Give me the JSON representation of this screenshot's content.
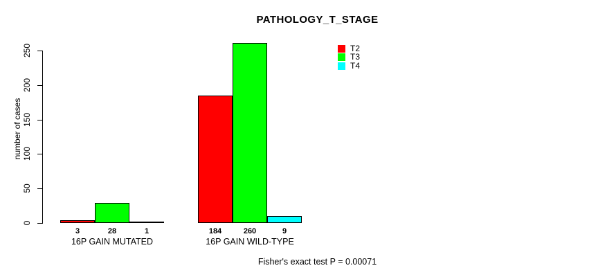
{
  "chart_data": {
    "type": "bar",
    "title": "PATHOLOGY_T_STAGE",
    "ylabel": "number of cases",
    "xlabel": "",
    "categories": [
      "16P GAIN MUTATED",
      "16P GAIN WILD-TYPE"
    ],
    "series": [
      {
        "name": "T2",
        "color": "#ff0000",
        "values": [
          3,
          184
        ]
      },
      {
        "name": "T3",
        "color": "#00ff00",
        "values": [
          28,
          260
        ]
      },
      {
        "name": "T4",
        "color": "#00ffff",
        "values": [
          1,
          9
        ]
      }
    ],
    "ylim": [
      0,
      250
    ],
    "yticks": [
      0,
      50,
      100,
      150,
      200,
      250
    ],
    "grid": false,
    "bar_value_labels_shown": true,
    "legend_position": "top-right",
    "footnote": "Fisher's exact test P = 0.00071"
  }
}
